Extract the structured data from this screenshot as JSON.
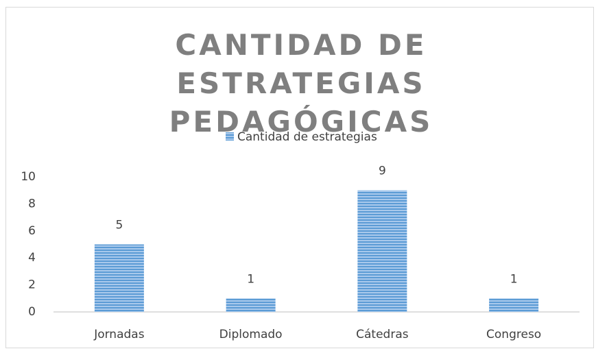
{
  "chart_data": {
    "type": "bar",
    "title": "CANTIDAD DE ESTRATEGIAS PEDAGÓGICAS",
    "categories": [
      "Jornadas",
      "Diplomado",
      "Cátedras",
      "Congreso"
    ],
    "series": [
      {
        "name": "Cantidad de estrategias",
        "color": "#5b9bd5",
        "values": [
          5,
          1,
          9,
          1
        ]
      }
    ],
    "ylim": [
      0,
      10
    ],
    "yticks": [
      0,
      2,
      4,
      6,
      8,
      10
    ],
    "grid": false,
    "legend": "top"
  }
}
